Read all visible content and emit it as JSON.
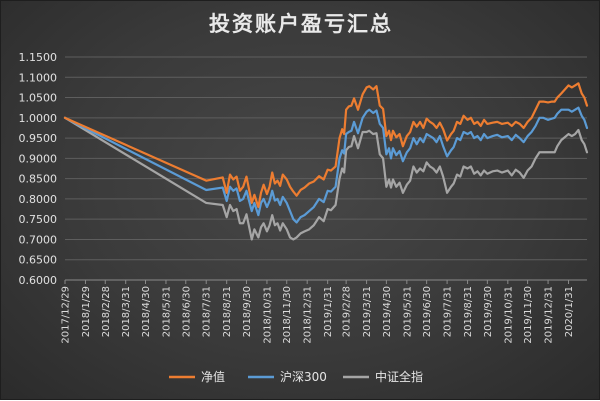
{
  "chart_data": {
    "type": "line",
    "title": "投资账户盈亏汇总",
    "xlabel": "",
    "ylabel": "",
    "ylim": [
      0.6,
      1.15
    ],
    "y_ticks": [
      "0.6000",
      "0.6500",
      "0.7000",
      "0.7500",
      "0.8000",
      "0.8500",
      "0.9000",
      "0.9500",
      "1.0000",
      "1.0500",
      "1.1000",
      "1.1500"
    ],
    "x_range": [
      "2017-12-29",
      "2020-02-28"
    ],
    "x_ticks": [
      {
        "date": "2017-12-29",
        "label": "2017/12/29"
      },
      {
        "date": "2018-01-29",
        "label": "2018/1/29"
      },
      {
        "date": "2018-02-28",
        "label": "2018/2/28"
      },
      {
        "date": "2018-03-31",
        "label": "2018/3/31"
      },
      {
        "date": "2018-04-30",
        "label": "2018/4/30"
      },
      {
        "date": "2018-05-31",
        "label": "2018/5/31"
      },
      {
        "date": "2018-06-30",
        "label": "2018/6/30"
      },
      {
        "date": "2018-07-31",
        "label": "2018/7/31"
      },
      {
        "date": "2018-08-31",
        "label": "2018/8/31"
      },
      {
        "date": "2018-09-30",
        "label": "2018/9/30"
      },
      {
        "date": "2018-10-31",
        "label": "2018/10/31"
      },
      {
        "date": "2018-11-30",
        "label": "2018/11/30"
      },
      {
        "date": "2018-12-31",
        "label": "2018/12/31"
      },
      {
        "date": "2019-01-31",
        "label": "2019/1/31"
      },
      {
        "date": "2019-02-28",
        "label": "2019/2/28"
      },
      {
        "date": "2019-03-31",
        "label": "2019/3/31"
      },
      {
        "date": "2019-04-30",
        "label": "2019/4/30"
      },
      {
        "date": "2019-05-31",
        "label": "2019/5/31"
      },
      {
        "date": "2019-06-30",
        "label": "2019/6/30"
      },
      {
        "date": "2019-07-31",
        "label": "2019/7/31"
      },
      {
        "date": "2019-08-31",
        "label": "2019/8/31"
      },
      {
        "date": "2019-09-30",
        "label": "2019/9/30"
      },
      {
        "date": "2019-10-31",
        "label": "2019/10/31"
      },
      {
        "date": "2019-11-30",
        "label": "2019/11/30"
      },
      {
        "date": "2019-12-31",
        "label": "2019/12/31"
      },
      {
        "date": "2020-01-31",
        "label": "2020/1/31"
      }
    ],
    "grid": {
      "horizontal": true,
      "vertical": false
    },
    "legend_position": "bottom",
    "series": [
      {
        "name": "净值",
        "color": "#ed7d31",
        "x": [
          "2017-12-29",
          "2018-07-31",
          "2018-08-25",
          "2018-08-31",
          "2018-09-05",
          "2018-09-10",
          "2018-09-15",
          "2018-09-20",
          "2018-09-25",
          "2018-09-30",
          "2018-10-08",
          "2018-10-12",
          "2018-10-18",
          "2018-10-22",
          "2018-10-26",
          "2018-10-31",
          "2018-11-04",
          "2018-11-08",
          "2018-11-12",
          "2018-11-16",
          "2018-11-20",
          "2018-11-24",
          "2018-11-30",
          "2018-12-05",
          "2018-12-10",
          "2018-12-15",
          "2018-12-21",
          "2018-12-27",
          "2019-01-03",
          "2019-01-10",
          "2019-01-18",
          "2019-01-25",
          "2019-01-31",
          "2019-02-05",
          "2019-02-12",
          "2019-02-18",
          "2019-02-22",
          "2019-02-25",
          "2019-02-28",
          "2019-03-04",
          "2019-03-08",
          "2019-03-12",
          "2019-03-18",
          "2019-03-25",
          "2019-03-31",
          "2019-04-04",
          "2019-04-10",
          "2019-04-15",
          "2019-04-20",
          "2019-04-25",
          "2019-04-30",
          "2019-05-04",
          "2019-05-07",
          "2019-05-10",
          "2019-05-15",
          "2019-05-20",
          "2019-05-25",
          "2019-05-31",
          "2019-06-05",
          "2019-06-10",
          "2019-06-15",
          "2019-06-20",
          "2019-06-25",
          "2019-06-30",
          "2019-07-05",
          "2019-07-10",
          "2019-07-15",
          "2019-07-20",
          "2019-07-25",
          "2019-07-31",
          "2019-08-06",
          "2019-08-10",
          "2019-08-15",
          "2019-08-20",
          "2019-08-25",
          "2019-08-31",
          "2019-09-05",
          "2019-09-10",
          "2019-09-15",
          "2019-09-20",
          "2019-09-25",
          "2019-09-30",
          "2019-10-08",
          "2019-10-15",
          "2019-10-22",
          "2019-10-31",
          "2019-11-06",
          "2019-11-12",
          "2019-11-18",
          "2019-11-24",
          "2019-11-30",
          "2019-12-06",
          "2019-12-12",
          "2019-12-18",
          "2019-12-24",
          "2019-12-31",
          "2020-01-06",
          "2020-01-10",
          "2020-01-14",
          "2020-01-20",
          "2020-01-31",
          "2020-02-05",
          "2020-02-10",
          "2020-02-15",
          "2020-02-20",
          "2020-02-24",
          "2020-02-28"
        ],
        "values": [
          1.0,
          0.845,
          0.853,
          0.815,
          0.86,
          0.848,
          0.855,
          0.82,
          0.83,
          0.855,
          0.79,
          0.81,
          0.78,
          0.815,
          0.835,
          0.812,
          0.83,
          0.865,
          0.838,
          0.845,
          0.832,
          0.86,
          0.848,
          0.83,
          0.818,
          0.808,
          0.822,
          0.828,
          0.838,
          0.843,
          0.856,
          0.848,
          0.872,
          0.87,
          0.88,
          0.95,
          0.972,
          0.96,
          1.02,
          1.028,
          1.03,
          1.048,
          1.02,
          1.058,
          1.075,
          1.078,
          1.07,
          1.078,
          1.03,
          1.022,
          0.955,
          0.968,
          0.945,
          0.968,
          0.952,
          0.96,
          0.93,
          0.955,
          0.965,
          0.99,
          0.978,
          0.99,
          0.975,
          0.998,
          0.99,
          0.985,
          0.975,
          0.988,
          0.972,
          0.944,
          0.96,
          0.968,
          0.99,
          0.985,
          1.005,
          0.995,
          1.0,
          0.985,
          0.99,
          0.98,
          0.995,
          0.985,
          0.988,
          0.99,
          0.985,
          0.988,
          0.98,
          0.99,
          0.985,
          0.975,
          0.99,
          1.0,
          1.02,
          1.04,
          1.04,
          1.038,
          1.04,
          1.04,
          1.05,
          1.06,
          1.08,
          1.075,
          1.08,
          1.085,
          1.06,
          1.05,
          1.03
        ]
      },
      {
        "name": "沪深300",
        "color": "#5b9bd5",
        "x": [
          "2017-12-29",
          "2018-07-31",
          "2018-08-25",
          "2018-08-31",
          "2018-09-05",
          "2018-09-10",
          "2018-09-15",
          "2018-09-20",
          "2018-09-25",
          "2018-09-30",
          "2018-10-08",
          "2018-10-12",
          "2018-10-18",
          "2018-10-22",
          "2018-10-26",
          "2018-10-31",
          "2018-11-04",
          "2018-11-08",
          "2018-11-12",
          "2018-11-16",
          "2018-11-20",
          "2018-11-24",
          "2018-11-30",
          "2018-12-05",
          "2018-12-10",
          "2018-12-15",
          "2018-12-21",
          "2018-12-27",
          "2019-01-03",
          "2019-01-10",
          "2019-01-18",
          "2019-01-25",
          "2019-01-31",
          "2019-02-05",
          "2019-02-12",
          "2019-02-18",
          "2019-02-22",
          "2019-02-25",
          "2019-02-28",
          "2019-03-04",
          "2019-03-08",
          "2019-03-12",
          "2019-03-18",
          "2019-03-25",
          "2019-03-31",
          "2019-04-04",
          "2019-04-10",
          "2019-04-15",
          "2019-04-20",
          "2019-04-25",
          "2019-04-30",
          "2019-05-04",
          "2019-05-07",
          "2019-05-10",
          "2019-05-15",
          "2019-05-20",
          "2019-05-25",
          "2019-05-31",
          "2019-06-05",
          "2019-06-10",
          "2019-06-15",
          "2019-06-20",
          "2019-06-25",
          "2019-06-30",
          "2019-07-05",
          "2019-07-10",
          "2019-07-15",
          "2019-07-20",
          "2019-07-25",
          "2019-07-31",
          "2019-08-06",
          "2019-08-10",
          "2019-08-15",
          "2019-08-20",
          "2019-08-25",
          "2019-08-31",
          "2019-09-05",
          "2019-09-10",
          "2019-09-15",
          "2019-09-20",
          "2019-09-25",
          "2019-09-30",
          "2019-10-08",
          "2019-10-15",
          "2019-10-22",
          "2019-10-31",
          "2019-11-06",
          "2019-11-12",
          "2019-11-18",
          "2019-11-24",
          "2019-11-30",
          "2019-12-06",
          "2019-12-12",
          "2019-12-18",
          "2019-12-24",
          "2019-12-31",
          "2020-01-06",
          "2020-01-10",
          "2020-01-14",
          "2020-01-20",
          "2020-01-31",
          "2020-02-05",
          "2020-02-10",
          "2020-02-15",
          "2020-02-20",
          "2020-02-24",
          "2020-02-28"
        ],
        "values": [
          1.0,
          0.822,
          0.828,
          0.795,
          0.83,
          0.82,
          0.826,
          0.795,
          0.8,
          0.82,
          0.77,
          0.79,
          0.76,
          0.79,
          0.8,
          0.78,
          0.795,
          0.82,
          0.796,
          0.8,
          0.785,
          0.805,
          0.79,
          0.77,
          0.75,
          0.742,
          0.755,
          0.76,
          0.77,
          0.78,
          0.8,
          0.792,
          0.82,
          0.818,
          0.83,
          0.9,
          0.92,
          0.912,
          0.96,
          0.965,
          0.968,
          0.99,
          0.962,
          1.0,
          1.015,
          1.02,
          1.012,
          1.018,
          0.985,
          0.975,
          0.91,
          0.925,
          0.9,
          0.925,
          0.908,
          0.918,
          0.893,
          0.915,
          0.925,
          0.95,
          0.935,
          0.95,
          0.94,
          0.96,
          0.955,
          0.95,
          0.94,
          0.955,
          0.93,
          0.905,
          0.92,
          0.928,
          0.95,
          0.945,
          0.965,
          0.96,
          0.965,
          0.95,
          0.955,
          0.945,
          0.96,
          0.95,
          0.955,
          0.958,
          0.952,
          0.955,
          0.945,
          0.958,
          0.95,
          0.94,
          0.955,
          0.965,
          0.98,
          1.0,
          1.0,
          0.995,
          0.998,
          1.0,
          1.01,
          1.02,
          1.02,
          1.015,
          1.02,
          1.025,
          1.005,
          0.995,
          0.975
        ]
      },
      {
        "name": "中证全指",
        "color": "#a5a5a5",
        "x": [
          "2017-12-29",
          "2018-07-31",
          "2018-08-25",
          "2018-08-31",
          "2018-09-05",
          "2018-09-10",
          "2018-09-15",
          "2018-09-20",
          "2018-09-25",
          "2018-09-30",
          "2018-10-08",
          "2018-10-12",
          "2018-10-18",
          "2018-10-22",
          "2018-10-26",
          "2018-10-31",
          "2018-11-04",
          "2018-11-08",
          "2018-11-12",
          "2018-11-16",
          "2018-11-20",
          "2018-11-24",
          "2018-11-30",
          "2018-12-05",
          "2018-12-10",
          "2018-12-15",
          "2018-12-21",
          "2018-12-27",
          "2019-01-03",
          "2019-01-10",
          "2019-01-18",
          "2019-01-25",
          "2019-01-31",
          "2019-02-05",
          "2019-02-12",
          "2019-02-18",
          "2019-02-22",
          "2019-02-25",
          "2019-02-28",
          "2019-03-04",
          "2019-03-08",
          "2019-03-12",
          "2019-03-18",
          "2019-03-25",
          "2019-03-31",
          "2019-04-04",
          "2019-04-10",
          "2019-04-15",
          "2019-04-20",
          "2019-04-25",
          "2019-04-30",
          "2019-05-04",
          "2019-05-07",
          "2019-05-10",
          "2019-05-15",
          "2019-05-20",
          "2019-05-25",
          "2019-05-31",
          "2019-06-05",
          "2019-06-10",
          "2019-06-15",
          "2019-06-20",
          "2019-06-25",
          "2019-06-30",
          "2019-07-05",
          "2019-07-10",
          "2019-07-15",
          "2019-07-20",
          "2019-07-25",
          "2019-07-31",
          "2019-08-06",
          "2019-08-10",
          "2019-08-15",
          "2019-08-20",
          "2019-08-25",
          "2019-08-31",
          "2019-09-05",
          "2019-09-10",
          "2019-09-15",
          "2019-09-20",
          "2019-09-25",
          "2019-09-30",
          "2019-10-08",
          "2019-10-15",
          "2019-10-22",
          "2019-10-31",
          "2019-11-06",
          "2019-11-12",
          "2019-11-18",
          "2019-11-24",
          "2019-11-30",
          "2019-12-06",
          "2019-12-12",
          "2019-12-18",
          "2019-12-24",
          "2019-12-31",
          "2020-01-06",
          "2020-01-10",
          "2020-01-14",
          "2020-01-20",
          "2020-01-31",
          "2020-02-05",
          "2020-02-10",
          "2020-02-15",
          "2020-02-20",
          "2020-02-24",
          "2020-02-28"
        ],
        "values": [
          1.0,
          0.79,
          0.785,
          0.755,
          0.785,
          0.77,
          0.775,
          0.74,
          0.74,
          0.762,
          0.7,
          0.725,
          0.705,
          0.73,
          0.74,
          0.72,
          0.735,
          0.76,
          0.735,
          0.74,
          0.722,
          0.74,
          0.725,
          0.705,
          0.7,
          0.705,
          0.715,
          0.72,
          0.725,
          0.735,
          0.755,
          0.745,
          0.775,
          0.772,
          0.785,
          0.85,
          0.875,
          0.865,
          0.92,
          0.928,
          0.93,
          0.955,
          0.925,
          0.965,
          0.965,
          0.968,
          0.96,
          0.962,
          0.91,
          0.9,
          0.83,
          0.848,
          0.828,
          0.848,
          0.83,
          0.84,
          0.815,
          0.835,
          0.845,
          0.88,
          0.865,
          0.875,
          0.868,
          0.89,
          0.88,
          0.875,
          0.865,
          0.88,
          0.855,
          0.815,
          0.83,
          0.838,
          0.86,
          0.855,
          0.88,
          0.875,
          0.88,
          0.862,
          0.868,
          0.858,
          0.87,
          0.862,
          0.868,
          0.87,
          0.865,
          0.87,
          0.858,
          0.872,
          0.865,
          0.852,
          0.87,
          0.88,
          0.9,
          0.915,
          0.915,
          0.915,
          0.915,
          0.915,
          0.93,
          0.945,
          0.96,
          0.955,
          0.96,
          0.97,
          0.945,
          0.935,
          0.915
        ]
      }
    ]
  }
}
